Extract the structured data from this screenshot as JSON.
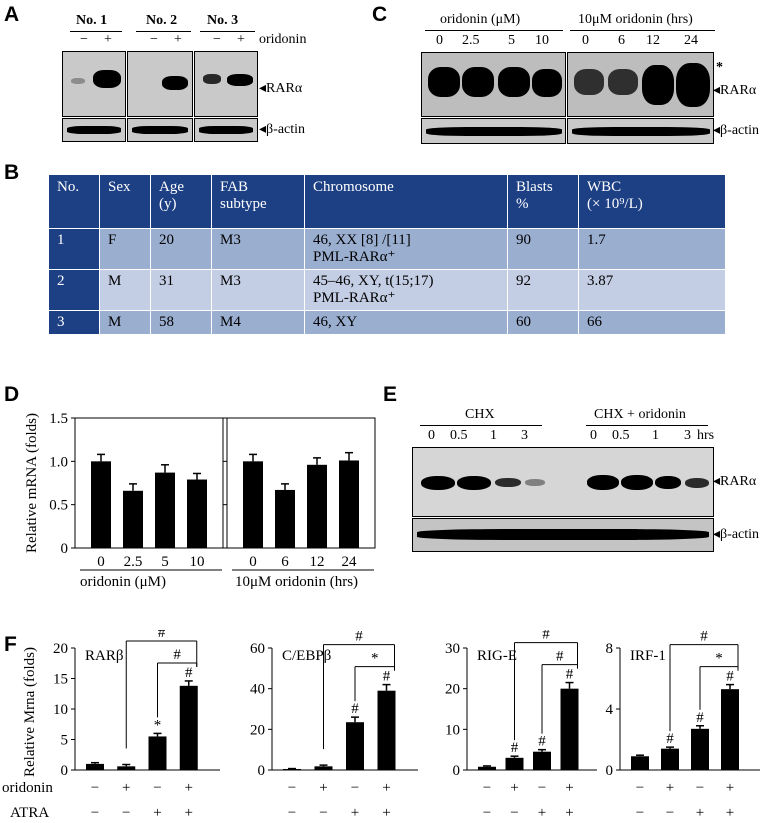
{
  "panels": {
    "A": "A",
    "B": "B",
    "C": "C",
    "D": "D",
    "E": "E",
    "F": "F"
  },
  "panelA": {
    "samples": [
      "No. 1",
      "No. 2",
      "No. 3"
    ],
    "minus": "−",
    "plus": "+",
    "treatment": "oridonin",
    "rar": "◂RARα",
    "actin": "◂β-actin"
  },
  "panelC": {
    "dose_header": "oridonin  (μM)",
    "doses": [
      "0",
      "2.5",
      "5",
      "10"
    ],
    "time_header": "10μM oridonin  (hrs)",
    "times": [
      "0",
      "6",
      "12",
      "24"
    ],
    "star": "*",
    "rar": "◂RARα",
    "actin": "◂β-actin"
  },
  "panelB": {
    "headers": [
      {
        "l1": "No.",
        "l2": ""
      },
      {
        "l1": "Sex",
        "l2": ""
      },
      {
        "l1": "Age",
        "l2": "(y)"
      },
      {
        "l1": "FAB",
        "l2": "subtype"
      },
      {
        "l1": "Chromosome",
        "l2": ""
      },
      {
        "l1": "Blasts",
        "l2": "%"
      },
      {
        "l1": "WBC",
        "l2": "(× 10⁹/L)"
      }
    ],
    "rows": [
      {
        "no": "1",
        "sex": "F",
        "age": "20",
        "fab": "M3",
        "chr1": "46, XX [8] /[11]",
        "chr2": "PML-RARα⁺",
        "blasts": "90",
        "wbc": "1.7"
      },
      {
        "no": "2",
        "sex": "M",
        "age": "31",
        "fab": "M3",
        "chr1": "45–46, XY, t(15;17)",
        "chr2": "PML-RARα⁺",
        "blasts": "92",
        "wbc": "3.87"
      },
      {
        "no": "3",
        "sex": "M",
        "age": "58",
        "fab": "M4",
        "chr1": "46, XY",
        "chr2": "",
        "blasts": "60",
        "wbc": "66"
      }
    ]
  },
  "panelE": {
    "chx": "CHX",
    "chx_orid": "CHX + oridonin",
    "times": [
      "0",
      "0.5",
      "1",
      "3"
    ],
    "hrs": "hrs",
    "rar": "◂RARα",
    "actin": "◂β-actin"
  },
  "colors": {
    "header_blue": "#1d3f84",
    "row_dark": "#9aaed0",
    "row_light": "#c3cde3",
    "blot_bg": "#c9c9c9"
  },
  "chart_data": [
    {
      "id": "D-left",
      "type": "bar",
      "categories": [
        "0",
        "2.5",
        "5",
        "10"
      ],
      "values": [
        1.0,
        0.66,
        0.87,
        0.79
      ],
      "errors": [
        0.08,
        0.08,
        0.09,
        0.07
      ],
      "xlabel": "oridonin  (μM)",
      "ylabel": "Relative  mRNA (folds)",
      "ylim": [
        0,
        1.5
      ],
      "yticks": [
        "0",
        "0.5",
        "1.0",
        "1.5"
      ]
    },
    {
      "id": "D-right",
      "type": "bar",
      "categories": [
        "0",
        "6",
        "12",
        "24"
      ],
      "values": [
        1.0,
        0.67,
        0.96,
        1.01
      ],
      "errors": [
        0.08,
        0.07,
        0.08,
        0.09
      ],
      "xlabel": "10μM oridonin  (hrs)",
      "ylim": [
        0,
        1.5
      ]
    },
    {
      "id": "F-RARb",
      "type": "bar",
      "title": "RARβ",
      "values": [
        1.0,
        0.6,
        5.5,
        13.8
      ],
      "errors": [
        0.2,
        0.3,
        0.5,
        0.8
      ],
      "marks": [
        "",
        "",
        "*",
        "#"
      ],
      "ylabel": "Relative  Mrna (folds)",
      "ylim": [
        0,
        20
      ],
      "yticks": [
        "0",
        "5",
        "10",
        "15",
        "20"
      ],
      "brackets": [
        {
          "from": 1,
          "to": 3,
          "label": "#"
        },
        {
          "from": 2,
          "to": 3,
          "label": "#"
        }
      ]
    },
    {
      "id": "F-CEBPb",
      "type": "bar",
      "title": "C/EBPβ",
      "values": [
        0.5,
        1.8,
        23.5,
        39.0
      ],
      "errors": [
        0.2,
        0.6,
        2.5,
        3.0
      ],
      "marks": [
        "",
        "",
        "#",
        "#"
      ],
      "ylim": [
        0,
        60
      ],
      "yticks": [
        "0",
        "20",
        "40",
        "60"
      ],
      "brackets": [
        {
          "from": 1,
          "to": 3,
          "label": "#"
        },
        {
          "from": 2,
          "to": 3,
          "label": "*"
        }
      ]
    },
    {
      "id": "F-RIGE",
      "type": "bar",
      "title": "RIG-E",
      "values": [
        0.8,
        3.0,
        4.5,
        20.0
      ],
      "errors": [
        0.2,
        0.4,
        0.5,
        1.5
      ],
      "marks": [
        "",
        "#",
        "#",
        "#"
      ],
      "ylim": [
        0,
        30
      ],
      "yticks": [
        "0",
        "10",
        "20",
        "30"
      ],
      "brackets": [
        {
          "from": 1,
          "to": 3,
          "label": "#"
        },
        {
          "from": 2,
          "to": 3,
          "label": "#"
        }
      ]
    },
    {
      "id": "F-IRF1",
      "type": "bar",
      "title": "IRF-1",
      "values": [
        0.9,
        1.4,
        2.7,
        5.3
      ],
      "errors": [
        0.07,
        0.1,
        0.2,
        0.3
      ],
      "marks": [
        "",
        "#",
        "#",
        "#"
      ],
      "ylim": [
        0,
        8
      ],
      "yticks": [
        "0",
        "4",
        "8"
      ],
      "brackets": [
        {
          "from": 1,
          "to": 3,
          "label": "#"
        },
        {
          "from": 2,
          "to": 3,
          "label": "*"
        }
      ]
    }
  ],
  "panelF_conditions": {
    "oridonin_label": "oridonin",
    "atra_label": "ATRA",
    "oridonin": [
      "−",
      "+",
      "−",
      "+"
    ],
    "atra": [
      "−",
      "−",
      "+",
      "+"
    ]
  }
}
